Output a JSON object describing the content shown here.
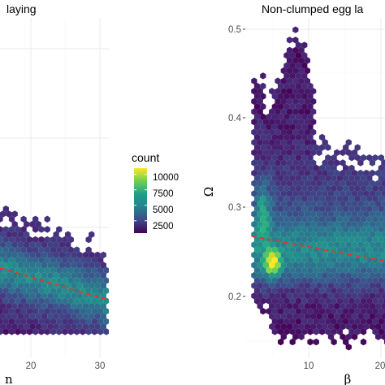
{
  "colors": {
    "panel_bg": "#ffffff",
    "grid": "#ebebeb",
    "trend": "#e8352a",
    "viridis": [
      "#440154",
      "#482878",
      "#3e4989",
      "#31688e",
      "#26828e",
      "#1f9e89",
      "#35b779",
      "#6ece58",
      "#b5de2b",
      "#fde725"
    ]
  },
  "chart_data": [
    {
      "type": "heatmap",
      "subtype": "hexbin",
      "title": "laying",
      "xlabel": "n",
      "x_ticks": [
        20,
        30
      ],
      "xlim": [
        -4,
        31
      ],
      "ylim": [
        0.14,
        0.52
      ],
      "grid": true,
      "trend": {
        "style": "dashed",
        "x": [
          -4,
          30
        ],
        "y": [
          0.24,
          0.205
        ]
      }
    },
    {
      "type": "heatmap",
      "subtype": "hexbin",
      "title": "Non-clumped egg la",
      "xlabel": "β",
      "ylabel": "Ω",
      "x_ticks": [
        10,
        20
      ],
      "y_ticks": [
        0.2,
        0.3,
        0.4,
        0.5
      ],
      "xlim": [
        1,
        23
      ],
      "ylim": [
        0.14,
        0.51
      ],
      "grid": true,
      "trend": {
        "style": "dashed",
        "x": [
          2,
          23
        ],
        "y": [
          0.272,
          0.245
        ]
      }
    }
  ],
  "legend": {
    "title": "count",
    "labels": [
      "10000",
      "7500",
      "5000",
      "2500"
    ],
    "values": [
      10000,
      7500,
      5000,
      2500
    ],
    "range": [
      500,
      11000
    ]
  }
}
